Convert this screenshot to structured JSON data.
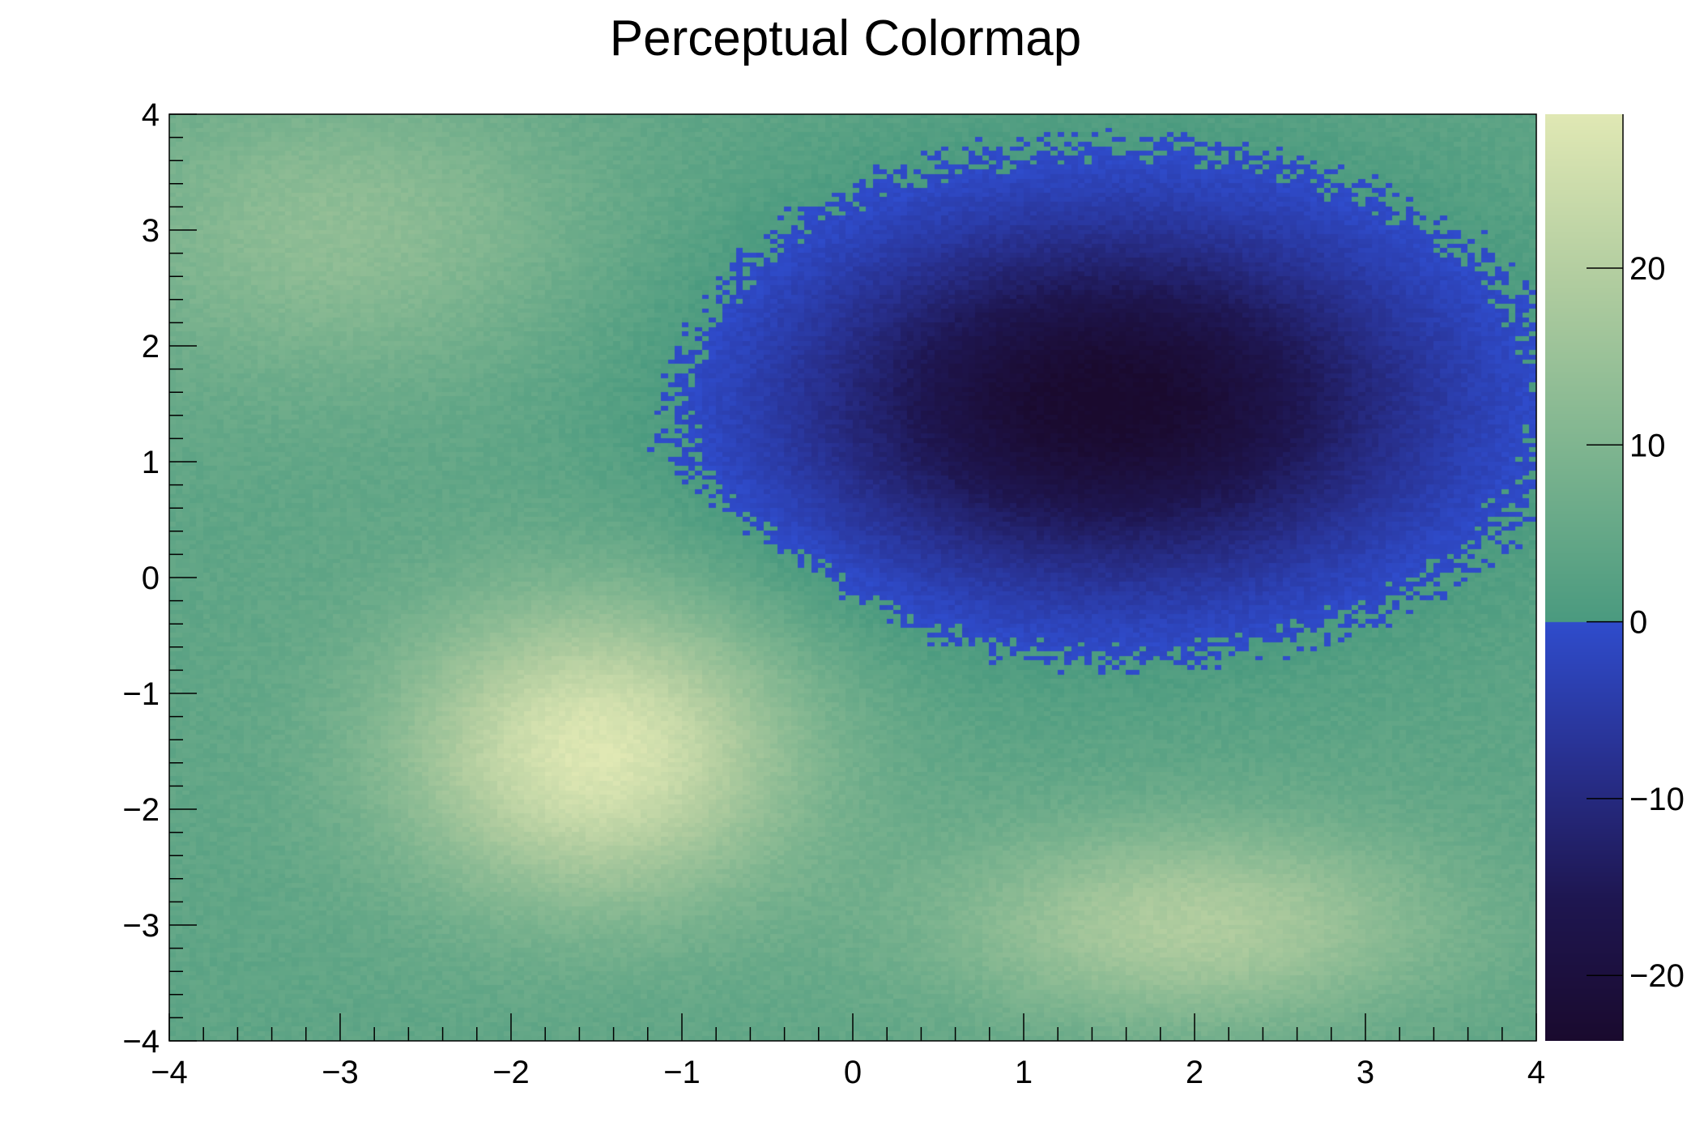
{
  "chart_data": {
    "type": "heatmap",
    "title": "Perceptual Colormap",
    "xlabel": "",
    "ylabel": "",
    "xlim": [
      -4,
      4
    ],
    "ylim": [
      -4,
      4
    ],
    "zlim": [
      -23.7,
      28.7
    ],
    "x_ticks": [
      "−4",
      "−3",
      "−2",
      "−1",
      "0",
      "1",
      "2",
      "3",
      "4"
    ],
    "y_ticks": [
      "−4",
      "−3",
      "−2",
      "−1",
      "0",
      "1",
      "2",
      "3",
      "4"
    ],
    "z_ticks": [
      "−20",
      "−10",
      "0",
      "10",
      "20"
    ],
    "z_tick_values": [
      -20,
      -10,
      0,
      10,
      20
    ],
    "bins": [
      200,
      200
    ],
    "baseline": 4,
    "components": [
      {
        "x0": -1.5,
        "y0": -1.5,
        "sx": 0.8,
        "sy": 0.9,
        "amplitude": 24
      },
      {
        "x0": 2.0,
        "y0": -3.0,
        "sx": 1.0,
        "sy": 0.6,
        "amplitude": 15
      },
      {
        "x0": -3.0,
        "y0": 3.0,
        "sx": 1.0,
        "sy": 0.9,
        "amplitude": 9
      },
      {
        "x0": 1.5,
        "y0": 1.5,
        "sx": 1.32,
        "sy": 1.12,
        "amplitude": -28
      }
    ],
    "colormap": {
      "positive": [
        "#4a9a7f",
        "#7db48f",
        "#b0cc9f",
        "#e0e8b4"
      ],
      "negative": [
        "#2f4ccc",
        "#28308f",
        "#1e1650",
        "#1a0a2e"
      ]
    },
    "colorbar": "right",
    "grid": false
  }
}
